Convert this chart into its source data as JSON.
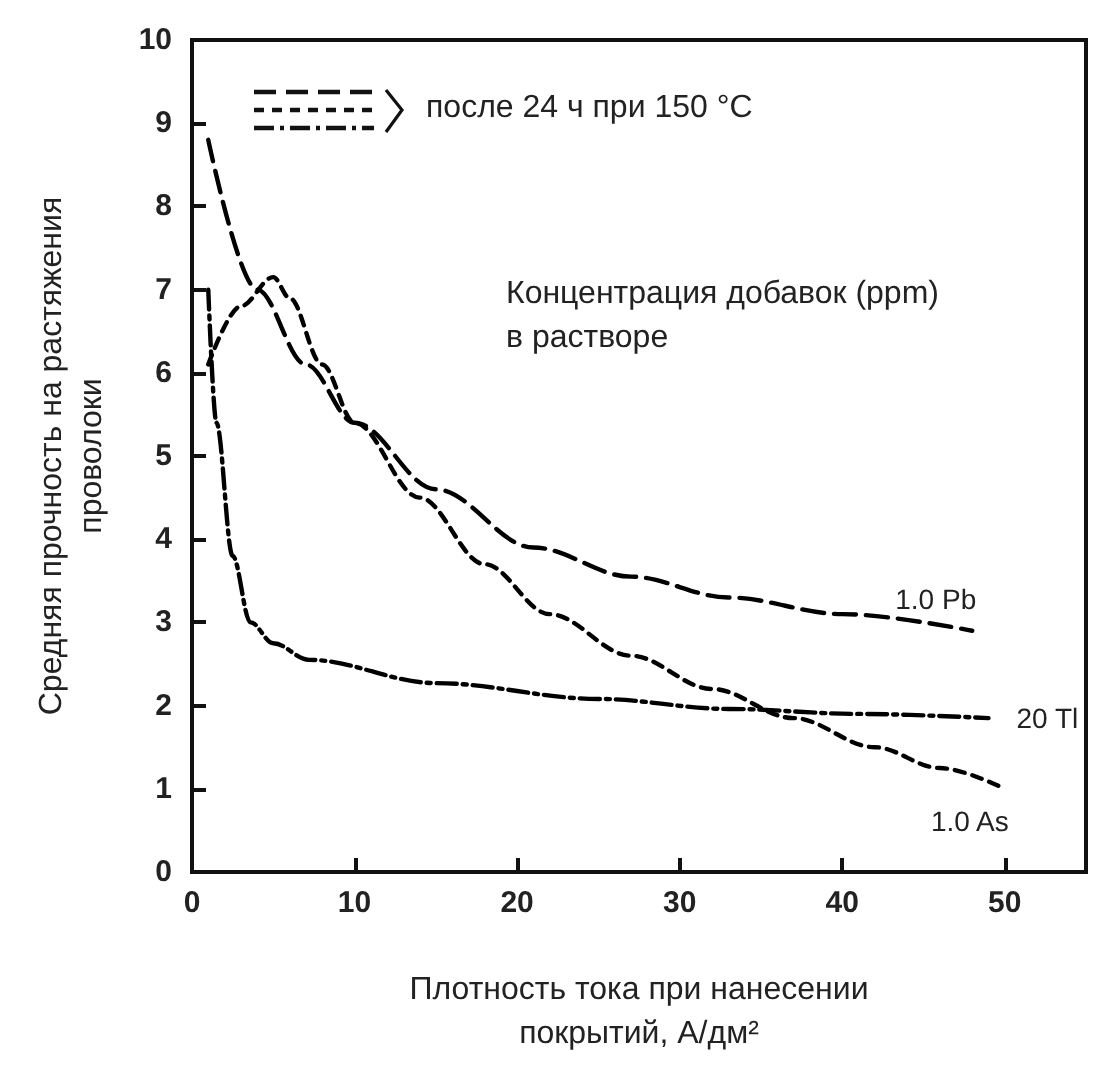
{
  "chart_data": {
    "type": "line",
    "xlabel": "Плотность тока при нанесении\nпокрытий, А/дм²",
    "ylabel": "Средняя прочность на растяжения\nпроволоки",
    "annotations": [
      "после 24 ч при 150 °C",
      "Концентрация добавок (ppm)\nв растворе"
    ],
    "series": [
      {
        "name": "1.0 Pb",
        "color": "#000000",
        "line_style": "dashed",
        "x": [
          1,
          4,
          7,
          10,
          15,
          21,
          27,
          33,
          40,
          48
        ],
        "values": [
          8.8,
          7.0,
          6.1,
          5.4,
          4.6,
          3.9,
          3.55,
          3.3,
          3.1,
          2.9
        ]
      },
      {
        "name": "1.0 As",
        "color": "#000000",
        "line_style": "dotted",
        "x": [
          1,
          3,
          5,
          6,
          8,
          10,
          14,
          18,
          22,
          27,
          32,
          37,
          42,
          46,
          50
        ],
        "values": [
          6.1,
          6.8,
          7.15,
          6.9,
          6.1,
          5.4,
          4.5,
          3.7,
          3.1,
          2.6,
          2.2,
          1.85,
          1.5,
          1.25,
          1.0
        ]
      },
      {
        "name": "20 Tl",
        "color": "#000000",
        "line_style": "dashdot",
        "x": [
          1,
          1.5,
          2.5,
          3.6,
          5,
          7.2,
          15,
          25,
          33,
          41,
          49
        ],
        "values": [
          7.0,
          5.4,
          3.8,
          3.0,
          2.75,
          2.55,
          2.27,
          2.08,
          1.96,
          1.9,
          1.85
        ]
      }
    ],
    "xlim": [
      0,
      55
    ],
    "xticks": [
      0,
      10,
      20,
      30,
      40,
      50
    ],
    "ylim": [
      0,
      10
    ],
    "yticks": [
      0,
      1,
      2,
      3,
      4,
      5,
      6,
      7,
      8,
      9,
      10
    ],
    "grid": false,
    "legend": false,
    "marker": "none"
  }
}
